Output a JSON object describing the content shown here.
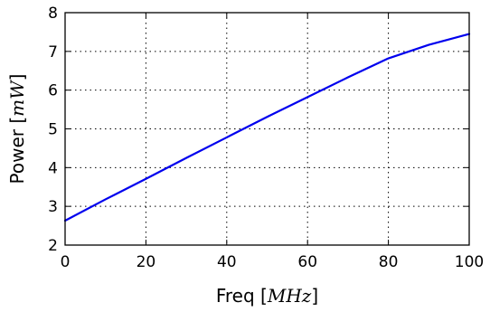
{
  "chart_data": {
    "type": "line",
    "title": "",
    "xlabel": {
      "prefix": "Freq ",
      "unit": "MHz"
    },
    "ylabel": {
      "prefix": "Power ",
      "unit": "mW"
    },
    "xlim": [
      0,
      100
    ],
    "ylim": [
      2,
      8
    ],
    "xticks": [
      0,
      20,
      40,
      60,
      80,
      100
    ],
    "yticks": [
      2,
      3,
      4,
      5,
      6,
      7,
      8
    ],
    "grid": true,
    "legend": "none",
    "series": [
      {
        "color": "#0000ee",
        "x": [
          0,
          10,
          20,
          30,
          40,
          50,
          60,
          70,
          80,
          90,
          100
        ],
        "y": [
          2.63,
          3.18,
          3.71,
          4.25,
          4.78,
          5.31,
          5.82,
          6.33,
          6.82,
          7.17,
          7.45
        ]
      }
    ]
  }
}
